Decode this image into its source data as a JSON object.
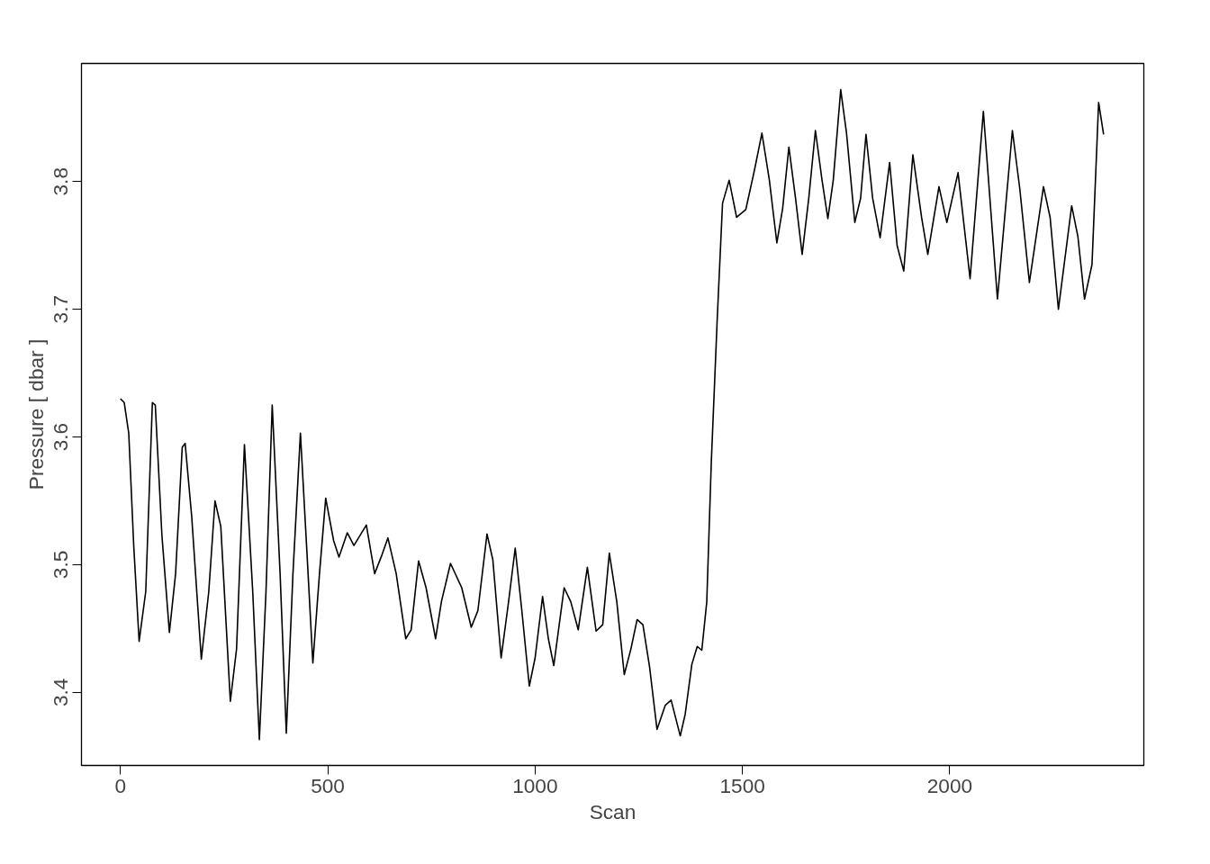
{
  "chart_data": {
    "type": "line",
    "xlabel": "Scan",
    "ylabel": "Pressure [ dbar ]",
    "xlim": [
      -94,
      2468
    ],
    "ylim": [
      3.3428,
      3.8925
    ],
    "xticks": [
      0,
      500,
      1000,
      1500,
      2000
    ],
    "yticks": [
      3.4,
      3.5,
      3.6,
      3.7,
      3.8
    ],
    "line_style": "solid",
    "series": [
      {
        "color": "#000000",
        "x": [
          0,
          9,
          20,
          32,
          45,
          61,
          77,
          84,
          100,
          118,
          133,
          149,
          156,
          172,
          195,
          213,
          228,
          242,
          265,
          280,
          299,
          319,
          335,
          351,
          366,
          385,
          400,
          416,
          434,
          450,
          464,
          480,
          495,
          514,
          527,
          547,
          563,
          593,
          613,
          631,
          645,
          665,
          688,
          701,
          719,
          737,
          760,
          774,
          796,
          823,
          846,
          862,
          884,
          898,
          918,
          936,
          952,
          968,
          986,
          1000,
          1018,
          1032,
          1045,
          1070,
          1086,
          1104,
          1126,
          1147,
          1163,
          1179,
          1197,
          1215,
          1231,
          1246,
          1260,
          1276,
          1294,
          1314,
          1328,
          1350,
          1362,
          1378,
          1391,
          1402,
          1414,
          1425,
          1439,
          1452,
          1468,
          1486,
          1508,
          1529,
          1547,
          1565,
          1583,
          1597,
          1612,
          1628,
          1644,
          1660,
          1676,
          1692,
          1706,
          1719,
          1737,
          1751,
          1771,
          1785,
          1798,
          1814,
          1832,
          1855,
          1873,
          1889,
          1911,
          1932,
          1947,
          1974,
          1993,
          2020,
          2049,
          2081,
          2115,
          2151,
          2169,
          2192,
          2226,
          2242,
          2262,
          2294,
          2309,
          2325,
          2343,
          2359,
          2371
        ],
        "values": [
          3.63,
          3.627,
          3.603,
          3.515,
          3.44,
          3.479,
          3.627,
          3.625,
          3.523,
          3.447,
          3.493,
          3.592,
          3.595,
          3.537,
          3.426,
          3.479,
          3.55,
          3.53,
          3.393,
          3.434,
          3.594,
          3.479,
          3.363,
          3.479,
          3.625,
          3.493,
          3.368,
          3.493,
          3.603,
          3.508,
          3.423,
          3.493,
          3.552,
          3.519,
          3.506,
          3.525,
          3.515,
          3.531,
          3.493,
          3.508,
          3.521,
          3.493,
          3.442,
          3.449,
          3.503,
          3.482,
          3.442,
          3.471,
          3.501,
          3.482,
          3.451,
          3.464,
          3.524,
          3.504,
          3.427,
          3.471,
          3.513,
          3.464,
          3.405,
          3.427,
          3.475,
          3.442,
          3.421,
          3.482,
          3.471,
          3.449,
          3.498,
          3.448,
          3.453,
          3.509,
          3.471,
          3.414,
          3.434,
          3.457,
          3.453,
          3.42,
          3.371,
          3.39,
          3.394,
          3.366,
          3.383,
          3.422,
          3.436,
          3.433,
          3.471,
          3.581,
          3.691,
          3.783,
          3.801,
          3.772,
          3.778,
          3.809,
          3.838,
          3.801,
          3.752,
          3.779,
          3.827,
          3.787,
          3.743,
          3.787,
          3.84,
          3.801,
          3.771,
          3.801,
          3.872,
          3.838,
          3.768,
          3.787,
          3.837,
          3.787,
          3.756,
          3.815,
          3.75,
          3.73,
          3.821,
          3.772,
          3.743,
          3.796,
          3.768,
          3.807,
          3.724,
          3.855,
          3.708,
          3.84,
          3.794,
          3.721,
          3.796,
          3.772,
          3.7,
          3.781,
          3.757,
          3.708,
          3.735,
          3.862,
          3.837
        ]
      }
    ]
  }
}
